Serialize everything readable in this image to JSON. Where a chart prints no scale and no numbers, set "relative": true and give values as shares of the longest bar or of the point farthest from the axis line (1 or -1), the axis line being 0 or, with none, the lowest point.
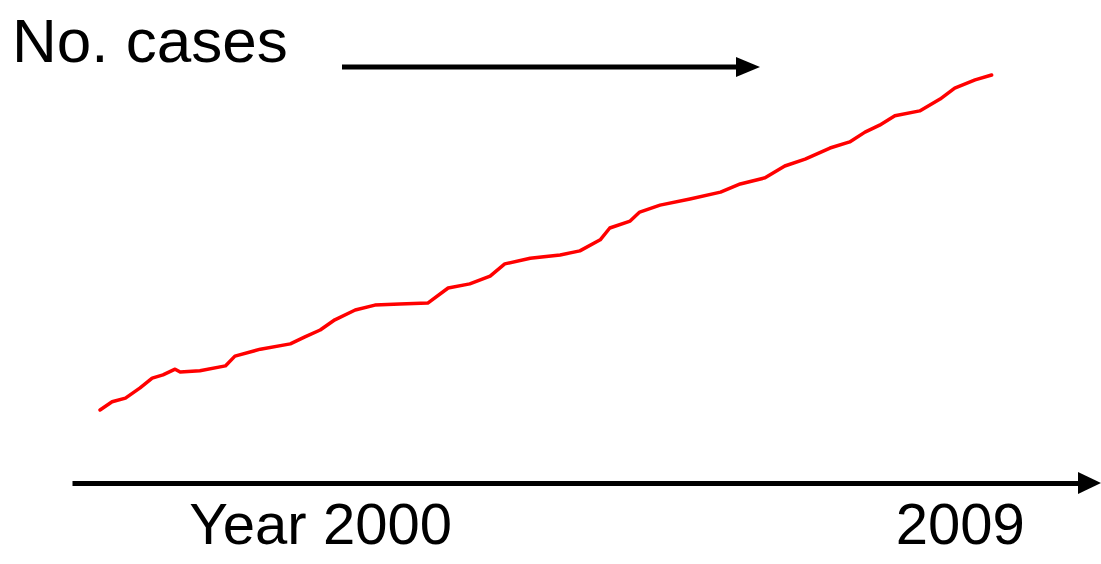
{
  "chart_data": {
    "type": "line",
    "ylabel": "No. cases",
    "relative": true,
    "xlim": [
      1995.05,
      2010.92
    ],
    "xlabel": "Year",
    "xticks": [
      2000,
      2009
    ],
    "grid": false,
    "marker": "none",
    "line_style": "solid",
    "series": [
      {
        "color": "#ff0000",
        "x": [
          1995.49,
          1995.68,
          1995.89,
          1996.12,
          1996.31,
          1996.48,
          1996.67,
          1996.75,
          1997.06,
          1997.46,
          1997.61,
          1998.01,
          1998.48,
          1998.71,
          1998.95,
          1999.18,
          1999.5,
          1999.81,
          2000.2,
          2000.64,
          2000.96,
          2001.3,
          2001.62,
          2001.85,
          2002.25,
          2002.72,
          2003.03,
          2003.35,
          2003.5,
          2003.82,
          2003.97,
          2004.29,
          2004.76,
          2005.24,
          2005.55,
          2005.94,
          2006.25,
          2006.57,
          2006.96,
          2007.27,
          2007.51,
          2007.74,
          2007.98,
          2008.37,
          2008.69,
          2008.92,
          2009.24,
          2009.5
        ],
        "values": [
          0.179,
          0.199,
          0.208,
          0.233,
          0.257,
          0.265,
          0.279,
          0.272,
          0.275,
          0.287,
          0.311,
          0.328,
          0.341,
          0.358,
          0.375,
          0.4,
          0.424,
          0.436,
          0.439,
          0.441,
          0.478,
          0.488,
          0.507,
          0.537,
          0.551,
          0.559,
          0.569,
          0.596,
          0.625,
          0.642,
          0.664,
          0.681,
          0.696,
          0.713,
          0.733,
          0.748,
          0.777,
          0.794,
          0.821,
          0.836,
          0.86,
          0.877,
          0.9,
          0.912,
          0.941,
          0.968,
          0.988,
          1
        ]
      }
    ]
  }
}
